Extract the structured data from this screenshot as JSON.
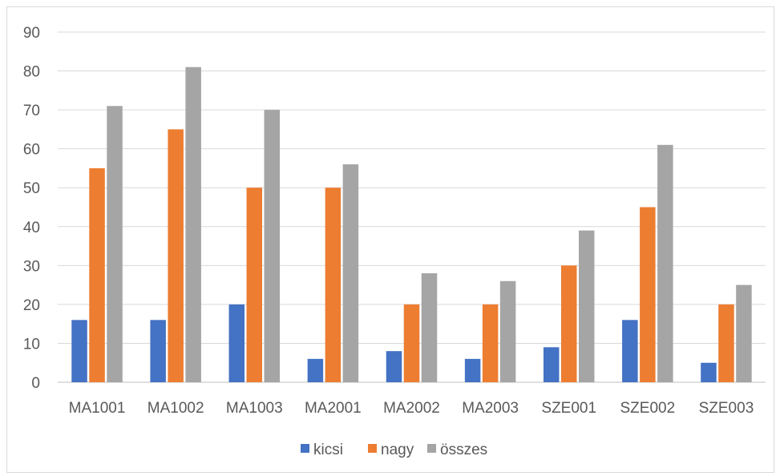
{
  "chart_data": {
    "type": "bar",
    "categories": [
      "MA1001",
      "MA1002",
      "MA1003",
      "MA2001",
      "MA2002",
      "MA2003",
      "SZE001",
      "SZE002",
      "SZE003"
    ],
    "series": [
      {
        "name": "kicsi",
        "color": "#4472c4",
        "values": [
          16,
          16,
          20,
          6,
          8,
          6,
          9,
          16,
          5
        ]
      },
      {
        "name": "nagy",
        "color": "#ed7d31",
        "values": [
          55,
          65,
          50,
          50,
          20,
          20,
          30,
          45,
          20
        ]
      },
      {
        "name": "összes",
        "color": "#a5a5a5",
        "values": [
          71,
          81,
          70,
          56,
          28,
          26,
          39,
          61,
          25
        ]
      }
    ],
    "ylim": [
      0,
      90
    ],
    "yticks": [
      0,
      10,
      20,
      30,
      40,
      50,
      60,
      70,
      80,
      90
    ],
    "grid": true,
    "legend_position": "bottom"
  }
}
